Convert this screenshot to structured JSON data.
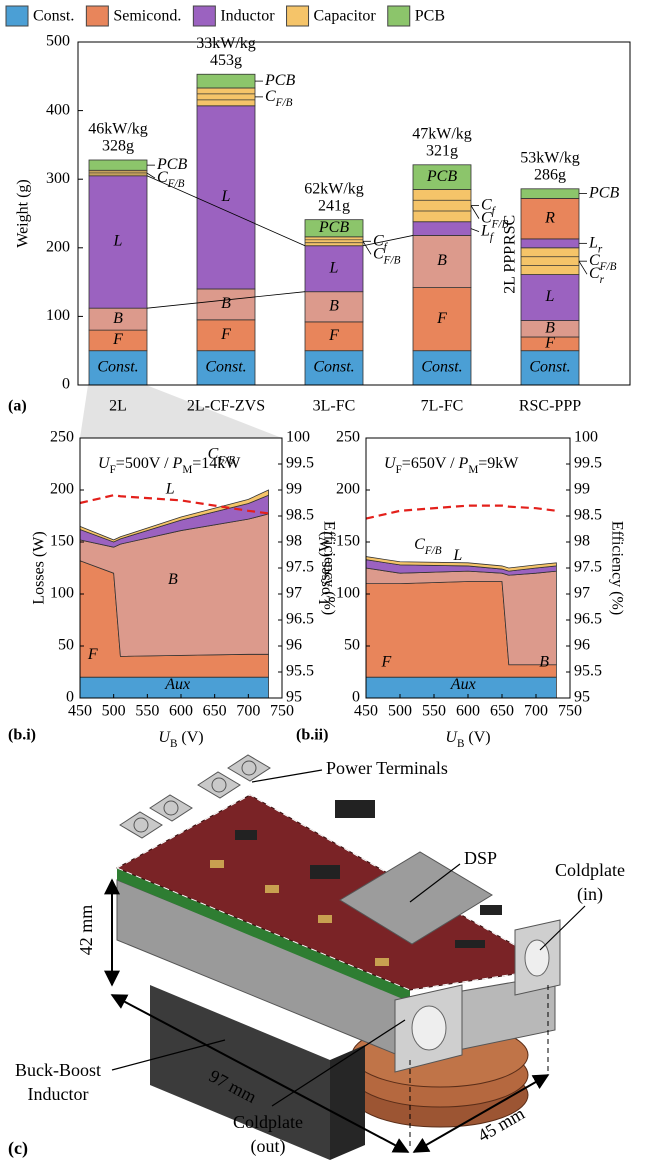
{
  "chart_data": [
    {
      "type": "bar",
      "stacked": true,
      "panel": "(a)",
      "ylabel": "Weight (g)",
      "ylim": [
        0,
        500
      ],
      "yticks": [
        0,
        100,
        200,
        300,
        400,
        500
      ],
      "legend": [
        {
          "name": "Const.",
          "color": "#4b9fd5"
        },
        {
          "name": "Semicond.",
          "color": "#e8855b"
        },
        {
          "name": "Inductor",
          "color": "#9b62c0"
        },
        {
          "name": "Capacitor",
          "color": "#f5c469"
        },
        {
          "name": "PCB",
          "color": "#8cc56b"
        }
      ],
      "categories": [
        "2L",
        "2L-CF-ZVS",
        "3L-FC",
        "7L-FC",
        "RSC-PPP"
      ],
      "stacks": [
        {
          "top_labels": [
            "46kW/kg",
            "328g"
          ],
          "segments": [
            {
              "value": 50,
              "label": "Const.",
              "color": "#4b9fd5"
            },
            {
              "value": 30,
              "label": "F",
              "color": "#e8855b"
            },
            {
              "value": 32,
              "label": "B",
              "color": "#dc9a8c"
            },
            {
              "value": 193,
              "label": "L",
              "color": "#9b62c0"
            },
            {
              "value": 8,
              "color": "#f5c469",
              "side_labels": [
                [
                  {
                    "text": "C",
                    "style": "italic"
                  },
                  {
                    "text": "F/B",
                    "style": "sub-italic"
                  }
                ]
              ]
            },
            {
              "value": 15,
              "color": "#8cc56b",
              "side_labels": [
                [
                  {
                    "text": "PCB",
                    "style": "italic"
                  }
                ]
              ]
            }
          ]
        },
        {
          "top_labels": [
            "33kW/kg",
            "453g"
          ],
          "segments": [
            {
              "value": 50,
              "label": "Const.",
              "color": "#4b9fd5"
            },
            {
              "value": 45,
              "label": "F",
              "color": "#e8855b"
            },
            {
              "value": 45,
              "label": "B",
              "color": "#dc9a8c"
            },
            {
              "value": 267,
              "label": "L",
              "color": "#9b62c0"
            },
            {
              "value": 26,
              "color": "#f5c469",
              "side_labels": [
                [
                  {
                    "text": "C",
                    "style": "italic"
                  },
                  {
                    "text": "F/B",
                    "style": "sub-italic"
                  }
                ]
              ]
            },
            {
              "value": 20,
              "color": "#8cc56b",
              "side_labels": [
                [
                  {
                    "text": "PCB",
                    "style": "italic"
                  }
                ]
              ]
            }
          ]
        },
        {
          "top_labels": [
            "62kW/kg",
            "241g"
          ],
          "segments": [
            {
              "value": 50,
              "label": "Const.",
              "color": "#4b9fd5"
            },
            {
              "value": 42,
              "label": "F",
              "color": "#e8855b"
            },
            {
              "value": 44,
              "label": "B",
              "color": "#dc9a8c"
            },
            {
              "value": 67,
              "label": "L",
              "color": "#9b62c0"
            },
            {
              "value": 13,
              "color": "#f5c469",
              "side_labels": [
                [
                  {
                    "text": "C",
                    "style": "italic"
                  },
                  {
                    "text": "F/B",
                    "style": "sub-italic"
                  }
                ],
                [
                  {
                    "text": "C",
                    "style": "italic"
                  },
                  {
                    "text": "f",
                    "style": "sub-italic"
                  }
                ]
              ]
            },
            {
              "value": 25,
              "label": "PCB",
              "color": "#8cc56b"
            }
          ]
        },
        {
          "top_labels": [
            "47kW/kg",
            "321g"
          ],
          "segments": [
            {
              "value": 50,
              "label": "Const.",
              "color": "#4b9fd5"
            },
            {
              "value": 92,
              "label": "F",
              "color": "#e8855b"
            },
            {
              "value": 76,
              "label": "B",
              "color": "#dc9a8c"
            },
            {
              "value": 20,
              "color": "#9b62c0",
              "side_labels": [
                [
                  {
                    "text": "L",
                    "style": "italic"
                  },
                  {
                    "text": "f",
                    "style": "sub-italic"
                  }
                ]
              ]
            },
            {
              "value": 47,
              "color": "#f5c469",
              "side_labels": [
                [
                  {
                    "text": "C",
                    "style": "italic"
                  },
                  {
                    "text": "F/B",
                    "style": "sub-italic"
                  }
                ],
                [
                  {
                    "text": "C",
                    "style": "italic"
                  },
                  {
                    "text": "f",
                    "style": "sub-italic"
                  }
                ]
              ]
            },
            {
              "value": 36,
              "label": "PCB",
              "color": "#8cc56b"
            }
          ]
        },
        {
          "top_labels": [
            "53kW/kg",
            "286g"
          ],
          "bracket_labels": [
            "RSC",
            "2L PPP"
          ],
          "segments": [
            {
              "value": 50,
              "label": "Const.",
              "color": "#4b9fd5"
            },
            {
              "value": 20,
              "label": "F",
              "color": "#e8855b"
            },
            {
              "value": 24,
              "label": "B",
              "color": "#dc9a8c"
            },
            {
              "value": 67,
              "label": "L",
              "color": "#9b62c0"
            },
            {
              "value": 39,
              "color": "#f5c469",
              "side_labels": [
                [
                  {
                    "text": "C",
                    "style": "italic"
                  },
                  {
                    "text": "r",
                    "style": "sub-italic"
                  }
                ],
                [
                  {
                    "text": "C",
                    "style": "italic"
                  },
                  {
                    "text": "F/B",
                    "style": "sub-italic"
                  }
                ]
              ]
            },
            {
              "value": 13,
              "color": "#9b62c0",
              "side_labels": [
                [
                  {
                    "text": "L",
                    "style": "italic"
                  },
                  {
                    "text": "r",
                    "style": "sub-italic"
                  }
                ]
              ]
            },
            {
              "value": 59,
              "label": "R",
              "color": "#e8855b"
            },
            {
              "value": 14,
              "color": "#8cc56b",
              "side_labels": [
                [
                  {
                    "text": "PCB",
                    "style": "italic"
                  }
                ]
              ]
            }
          ]
        }
      ]
    },
    {
      "type": "area",
      "stacked": true,
      "panel": "(b.i)",
      "condition": [
        {
          "text": "U",
          "style": "italic"
        },
        {
          "text": "F",
          "style": "sub"
        },
        {
          "text": "=500V / "
        },
        {
          "text": "P",
          "style": "italic"
        },
        {
          "text": "M",
          "style": "sub"
        },
        {
          "text": "=14kW"
        }
      ],
      "xlabel": [
        {
          "text": "U",
          "style": "italic"
        },
        {
          "text": "B",
          "style": "sub"
        },
        {
          "text": " (V)"
        }
      ],
      "ylabel": "Losses (W)",
      "y2label": "Efficiency (%)",
      "x": [
        450,
        500,
        510,
        600,
        700,
        730
      ],
      "xlim": [
        450,
        750
      ],
      "xticks": [
        450,
        500,
        550,
        600,
        650,
        700,
        750
      ],
      "ylim": [
        0,
        250
      ],
      "yticks": [
        0,
        50,
        100,
        150,
        200,
        250
      ],
      "y2lim": [
        95,
        100
      ],
      "y2ticks": [
        95,
        95.5,
        96,
        96.5,
        97,
        97.5,
        98,
        98.5,
        99,
        99.5,
        100
      ],
      "series": [
        {
          "name": "Aux",
          "color": "#4b9fd5",
          "values": [
            20,
            20,
            20,
            20,
            20,
            20
          ]
        },
        {
          "name": "F",
          "color": "#e8855b",
          "values": [
            112,
            100,
            20,
            21,
            22,
            22
          ]
        },
        {
          "name": "B",
          "color": "#dc9a8c",
          "values": [
            20,
            25,
            108,
            120,
            130,
            135
          ]
        },
        {
          "name": "L",
          "color": "#9b62c0",
          "values": [
            10,
            5,
            5,
            10,
            15,
            18
          ]
        },
        {
          "name": [
            {
              "text": "C",
              "style": "italic"
            },
            {
              "text": "F/B",
              "style": "sub-italic"
            }
          ],
          "color": "#f5c469",
          "values": [
            3,
            2,
            2,
            3,
            4,
            5
          ]
        },
        {
          "axis": "y2",
          "dashed": true,
          "color": "#e3201b",
          "values": [
            98.75,
            98.9,
            98.88,
            98.8,
            98.6,
            98.55
          ]
        }
      ]
    },
    {
      "type": "area",
      "stacked": true,
      "panel": "(b.ii)",
      "condition": [
        {
          "text": "U",
          "style": "italic"
        },
        {
          "text": "F",
          "style": "sub"
        },
        {
          "text": "=650V / "
        },
        {
          "text": "P",
          "style": "italic"
        },
        {
          "text": "M",
          "style": "sub"
        },
        {
          "text": "=9kW"
        }
      ],
      "xlabel": [
        {
          "text": "U",
          "style": "italic"
        },
        {
          "text": "B",
          "style": "sub"
        },
        {
          "text": " (V)"
        }
      ],
      "ylabel": "Losses (W)",
      "y2label": "Efficiency (%)",
      "x": [
        450,
        500,
        600,
        650,
        660,
        700,
        730
      ],
      "xlim": [
        450,
        750
      ],
      "xticks": [
        450,
        500,
        550,
        600,
        650,
        700,
        750
      ],
      "ylim": [
        0,
        250
      ],
      "yticks": [
        0,
        50,
        100,
        150,
        200,
        250
      ],
      "y2lim": [
        95,
        100
      ],
      "y2ticks": [
        95,
        95.5,
        96,
        96.5,
        97,
        97.5,
        98,
        98.5,
        99,
        99.5,
        100
      ],
      "series": [
        {
          "name": "Aux",
          "color": "#4b9fd5",
          "values": [
            20,
            20,
            20,
            20,
            20,
            20,
            20
          ]
        },
        {
          "name": "F",
          "color": "#e8855b",
          "values": [
            90,
            90,
            92,
            92,
            12,
            12,
            12
          ]
        },
        {
          "name": "B",
          "color": "#dc9a8c",
          "values": [
            15,
            10,
            10,
            8,
            86,
            88,
            90
          ]
        },
        {
          "name": "L",
          "color": "#9b62c0",
          "values": [
            8,
            8,
            5,
            4,
            4,
            5,
            5
          ]
        },
        {
          "name": [
            {
              "text": "C",
              "style": "italic"
            },
            {
              "text": "F/B",
              "style": "sub-italic"
            }
          ],
          "color": "#f5c469",
          "values": [
            3,
            3,
            3,
            3,
            3,
            3,
            3
          ]
        },
        {
          "axis": "y2",
          "dashed": true,
          "color": "#e3201b",
          "values": [
            98.45,
            98.6,
            98.7,
            98.7,
            98.68,
            98.65,
            98.6
          ]
        }
      ]
    }
  ],
  "panel_c": {
    "label": "(c)",
    "power_terminals": "Power Terminals",
    "dsp": "DSP",
    "coldplate_in": [
      "Coldplate",
      "(in)"
    ],
    "inductor": [
      "Buck-Boost",
      "Inductor"
    ],
    "coldplate_out": [
      "Coldplate",
      "(out)"
    ],
    "dimensions": [
      "42 mm",
      "97 mm",
      "45 mm"
    ]
  }
}
